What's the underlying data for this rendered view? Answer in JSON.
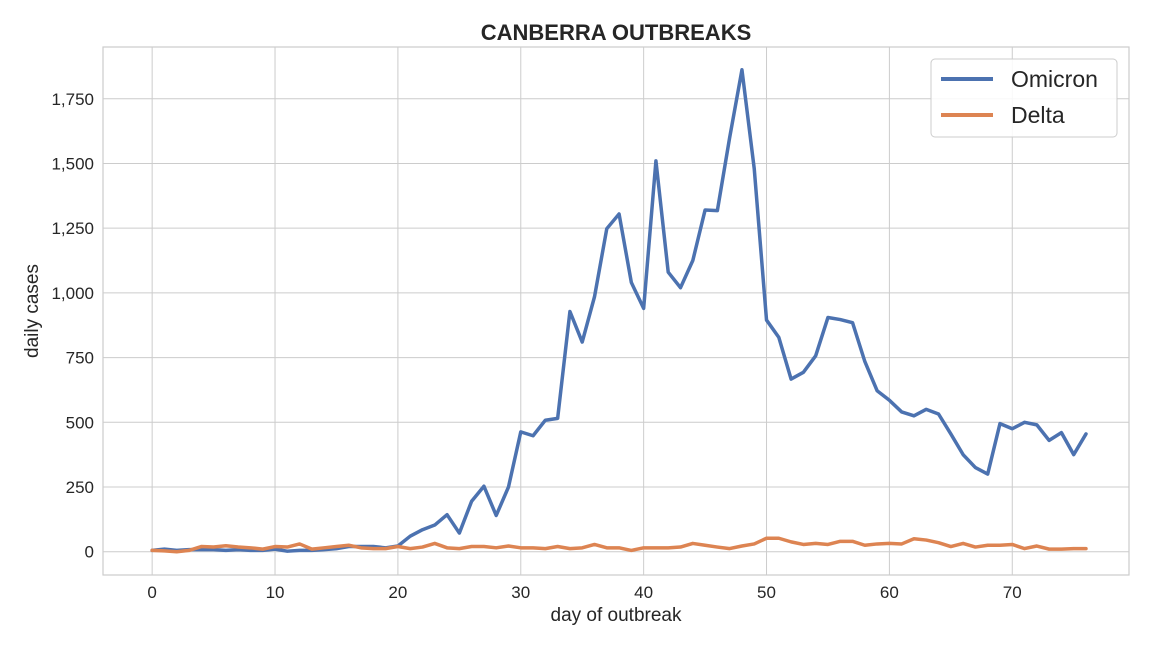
{
  "chart_data": {
    "type": "line",
    "title": "CANBERRA OUTBREAKS",
    "xlabel": "day of outbreak",
    "ylabel": "daily cases",
    "xlim": [
      -4,
      79.5
    ],
    "ylim": [
      -90,
      1950
    ],
    "xticks": [
      0,
      10,
      20,
      30,
      40,
      50,
      60,
      70
    ],
    "xtick_labels": [
      "0",
      "10",
      "20",
      "30",
      "40",
      "50",
      "60",
      "70"
    ],
    "yticks": [
      0,
      250,
      500,
      750,
      1000,
      1250,
      1500,
      1750
    ],
    "ytick_labels": [
      "0",
      "250",
      "500",
      "750",
      "1,000",
      "1,250",
      "1,500",
      "1,750"
    ],
    "grid": true,
    "legend_position": "top-right",
    "series": [
      {
        "name": "Omicron",
        "color": "#4c72b0",
        "x": [
          0,
          1,
          2,
          3,
          4,
          5,
          6,
          7,
          8,
          9,
          10,
          11,
          12,
          13,
          14,
          15,
          16,
          17,
          18,
          19,
          20,
          21,
          22,
          23,
          24,
          25,
          26,
          27,
          28,
          29,
          30,
          31,
          32,
          33,
          34,
          35,
          36,
          37,
          38,
          39,
          40,
          41,
          42,
          43,
          44,
          45,
          46,
          47,
          48,
          49,
          50,
          51,
          52,
          53,
          54,
          55,
          56,
          57,
          58,
          59,
          60,
          61,
          62,
          63,
          64,
          65,
          66,
          67,
          68,
          69,
          70,
          71,
          72,
          73,
          74,
          75,
          76
        ],
        "values": [
          5,
          10,
          5,
          8,
          8,
          8,
          5,
          8,
          5,
          5,
          10,
          2,
          5,
          5,
          8,
          12,
          20,
          20,
          20,
          15,
          22,
          60,
          85,
          103,
          143,
          72,
          195,
          253,
          140,
          250,
          463,
          448,
          508,
          515,
          928,
          810,
          985,
          1248,
          1305,
          1040,
          940,
          1510,
          1080,
          1020,
          1125,
          1320,
          1318,
          1600,
          1862,
          1480,
          895,
          828,
          667,
          693,
          757,
          905,
          897,
          885,
          735,
          622,
          585,
          540,
          525,
          550,
          532,
          455,
          375,
          325,
          300,
          495,
          475,
          500,
          490,
          430,
          460,
          375,
          455
        ]
      },
      {
        "name": "Delta",
        "color": "#dd8452",
        "x": [
          0,
          1,
          2,
          3,
          4,
          5,
          6,
          7,
          8,
          9,
          10,
          11,
          12,
          13,
          14,
          15,
          16,
          17,
          18,
          19,
          20,
          21,
          22,
          23,
          24,
          25,
          26,
          27,
          28,
          29,
          30,
          31,
          32,
          33,
          34,
          35,
          36,
          37,
          38,
          39,
          40,
          41,
          42,
          43,
          44,
          45,
          46,
          47,
          48,
          49,
          50,
          51,
          52,
          53,
          54,
          55,
          56,
          57,
          58,
          59,
          60,
          61,
          62,
          63,
          64,
          65,
          66,
          67,
          68,
          69,
          70,
          71,
          72,
          73,
          74,
          75,
          76
        ],
        "values": [
          5,
          3,
          0,
          5,
          20,
          18,
          23,
          18,
          15,
          10,
          20,
          18,
          30,
          10,
          15,
          20,
          25,
          15,
          12,
          12,
          20,
          12,
          18,
          32,
          15,
          12,
          20,
          20,
          15,
          22,
          15,
          15,
          12,
          20,
          12,
          15,
          28,
          15,
          15,
          5,
          15,
          15,
          15,
          18,
          32,
          25,
          18,
          12,
          22,
          30,
          52,
          52,
          38,
          28,
          32,
          28,
          40,
          40,
          25,
          30,
          32,
          30,
          50,
          45,
          35,
          20,
          32,
          18,
          25,
          25,
          28,
          12,
          22,
          10,
          10,
          12,
          12
        ]
      }
    ]
  }
}
